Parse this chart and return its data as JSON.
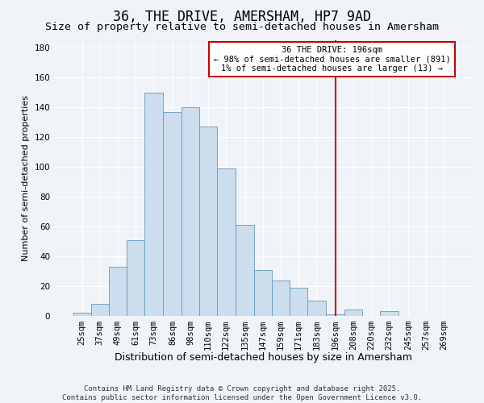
{
  "title": "36, THE DRIVE, AMERSHAM, HP7 9AD",
  "subtitle": "Size of property relative to semi-detached houses in Amersham",
  "xlabel": "Distribution of semi-detached houses by size in Amersham",
  "ylabel": "Number of semi-detached properties",
  "bin_labels": [
    "25sqm",
    "37sqm",
    "49sqm",
    "61sqm",
    "73sqm",
    "86sqm",
    "98sqm",
    "110sqm",
    "122sqm",
    "135sqm",
    "147sqm",
    "159sqm",
    "171sqm",
    "183sqm",
    "196sqm",
    "208sqm",
    "220sqm",
    "232sqm",
    "245sqm",
    "257sqm",
    "269sqm"
  ],
  "bar_heights": [
    2,
    8,
    33,
    51,
    150,
    137,
    140,
    127,
    99,
    61,
    31,
    24,
    19,
    10,
    1,
    4,
    0,
    3,
    0,
    0,
    0
  ],
  "bar_color": "#ccdded",
  "bar_edge_color": "#6699bb",
  "vline_x": 196,
  "vline_color": "#cc0000",
  "annotation_text": "36 THE DRIVE: 196sqm\n← 98% of semi-detached houses are smaller (891)\n1% of semi-detached houses are larger (13) →",
  "annotation_box_color": "#cc0000",
  "annotation_text_color": "#000000",
  "ylim": [
    0,
    185
  ],
  "yticks": [
    0,
    20,
    40,
    60,
    80,
    100,
    120,
    140,
    160,
    180
  ],
  "bg_color": "#f0f4f8",
  "plot_bg_color": "#f0f4f8",
  "footer_text": "Contains HM Land Registry data © Crown copyright and database right 2025.\nContains public sector information licensed under the Open Government Licence v3.0.",
  "title_fontsize": 12,
  "subtitle_fontsize": 9.5,
  "xlabel_fontsize": 9,
  "ylabel_fontsize": 8,
  "tick_fontsize": 7.5,
  "annotation_fontsize": 7.5,
  "footer_fontsize": 6.5
}
